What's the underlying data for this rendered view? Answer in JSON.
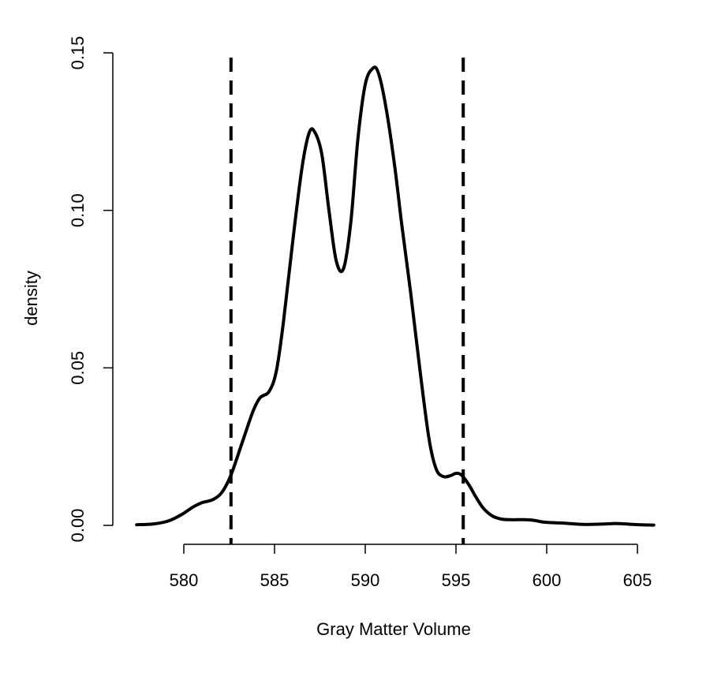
{
  "chart_data": {
    "type": "line",
    "title": "",
    "xlabel": "Gray Matter Volume",
    "ylabel": "density",
    "xlim": [
      577.4,
      605.9
    ],
    "ylim": [
      0,
      0.15
    ],
    "x_ticks": [
      580,
      585,
      590,
      595,
      600,
      605
    ],
    "x_tick_labels": [
      "580",
      "585",
      "590",
      "595",
      "600",
      "605"
    ],
    "y_ticks": [
      0.0,
      0.05,
      0.1,
      0.15
    ],
    "y_tick_labels": [
      "0.00",
      "0.05",
      "0.10",
      "0.15"
    ],
    "grid": false,
    "series": [
      {
        "style": "solid",
        "color": "#000000",
        "x": [
          577.4,
          578.4,
          579.2,
          579.9,
          580.5,
          581.0,
          581.6,
          582.1,
          582.6,
          583.2,
          583.8,
          584.2,
          584.7,
          585.1,
          585.5,
          586.0,
          586.5,
          586.9,
          587.2,
          587.6,
          588.0,
          588.4,
          588.8,
          589.2,
          589.6,
          590.0,
          590.4,
          590.7,
          591.1,
          591.6,
          592.0,
          592.5,
          593.0,
          593.5,
          593.9,
          594.3,
          594.7,
          595.0,
          595.3,
          595.7,
          596.1,
          596.5,
          597.0,
          597.5,
          598.0,
          598.8,
          599.3,
          599.9,
          601.0,
          602.0,
          603.0,
          603.8,
          604.5,
          605.2,
          605.9
        ],
        "y": [
          0.0002,
          0.0005,
          0.0015,
          0.0035,
          0.0058,
          0.0072,
          0.0082,
          0.0105,
          0.016,
          0.026,
          0.036,
          0.0405,
          0.0425,
          0.049,
          0.065,
          0.09,
          0.113,
          0.1245,
          0.125,
          0.118,
          0.1,
          0.084,
          0.0815,
          0.096,
          0.123,
          0.14,
          0.145,
          0.144,
          0.134,
          0.115,
          0.096,
          0.074,
          0.05,
          0.028,
          0.018,
          0.0155,
          0.0158,
          0.0165,
          0.016,
          0.013,
          0.009,
          0.0055,
          0.003,
          0.002,
          0.0018,
          0.0018,
          0.0016,
          0.001,
          0.0007,
          0.0003,
          0.0004,
          0.0006,
          0.0004,
          0.0002,
          0.0001
        ]
      }
    ],
    "vlines": [
      {
        "x": 582.6,
        "style": "dashed",
        "color": "#000000"
      },
      {
        "x": 595.4,
        "style": "dashed",
        "color": "#000000"
      }
    ]
  }
}
